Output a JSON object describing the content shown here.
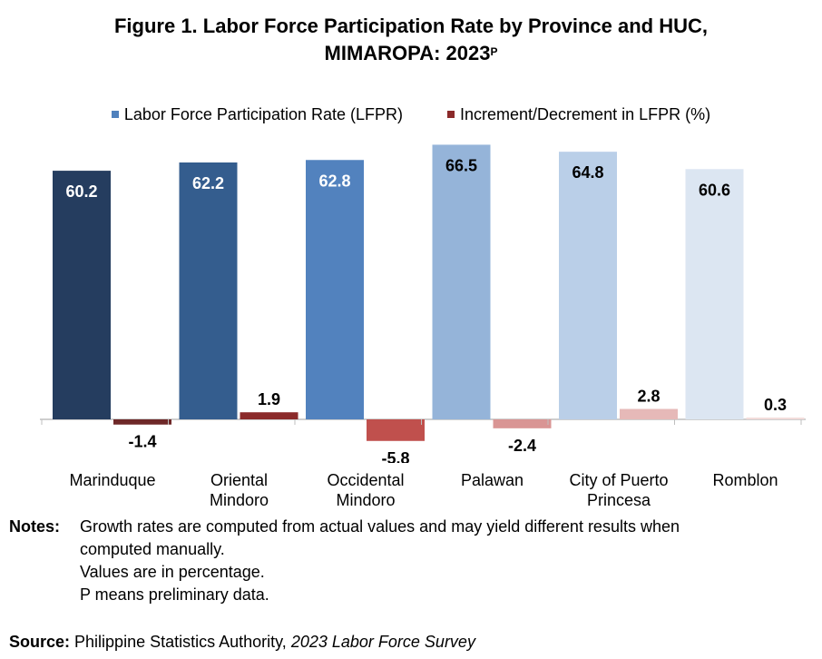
{
  "title": {
    "line1": "Figure 1. Labor Force Participation Rate by Province and HUC,",
    "line2": "MIMAROPA: 2023",
    "superscript": "P"
  },
  "legend": [
    {
      "label": "Labor Force Participation Rate (LFPR)",
      "color": "#4F81BD"
    },
    {
      "label": "Increment/Decrement in LFPR (%)",
      "color": "#8B2A2A"
    }
  ],
  "chart_data": {
    "type": "bar",
    "categories": [
      "Marinduque",
      "Oriental\nMindoro",
      "Occidental\nMindoro",
      "Palawan",
      "City of Puerto\nPrincesa",
      "Romblon"
    ],
    "series": [
      {
        "name": "Labor Force Participation Rate (LFPR)",
        "values": [
          60.2,
          62.2,
          62.8,
          66.5,
          64.8,
          60.6
        ]
      },
      {
        "name": "Increment/Decrement in LFPR (%)",
        "values": [
          -1.4,
          1.9,
          -5.8,
          -2.4,
          2.8,
          0.3
        ]
      }
    ],
    "lfpr_colors": [
      "#253D5F",
      "#345D8E",
      "#5282BE",
      "#95B4D9",
      "#BACFE8",
      "#DCE6F2"
    ],
    "change_colors": [
      "#6E2828",
      "#8B2A2A",
      "#C0504D",
      "#D99594",
      "#E6B9B8",
      "#F2DCDB"
    ],
    "legend_position": "top",
    "grid": false
  },
  "notes": {
    "heading": "Notes:",
    "lines": [
      "Growth rates are computed from actual values and may yield different results when",
      "computed manually.",
      "Values are in percentage.",
      "P means preliminary data."
    ]
  },
  "source": {
    "heading": "Source:",
    "text": " Philippine Statistics Authority, ",
    "italic": "2023 Labor Force Survey"
  }
}
